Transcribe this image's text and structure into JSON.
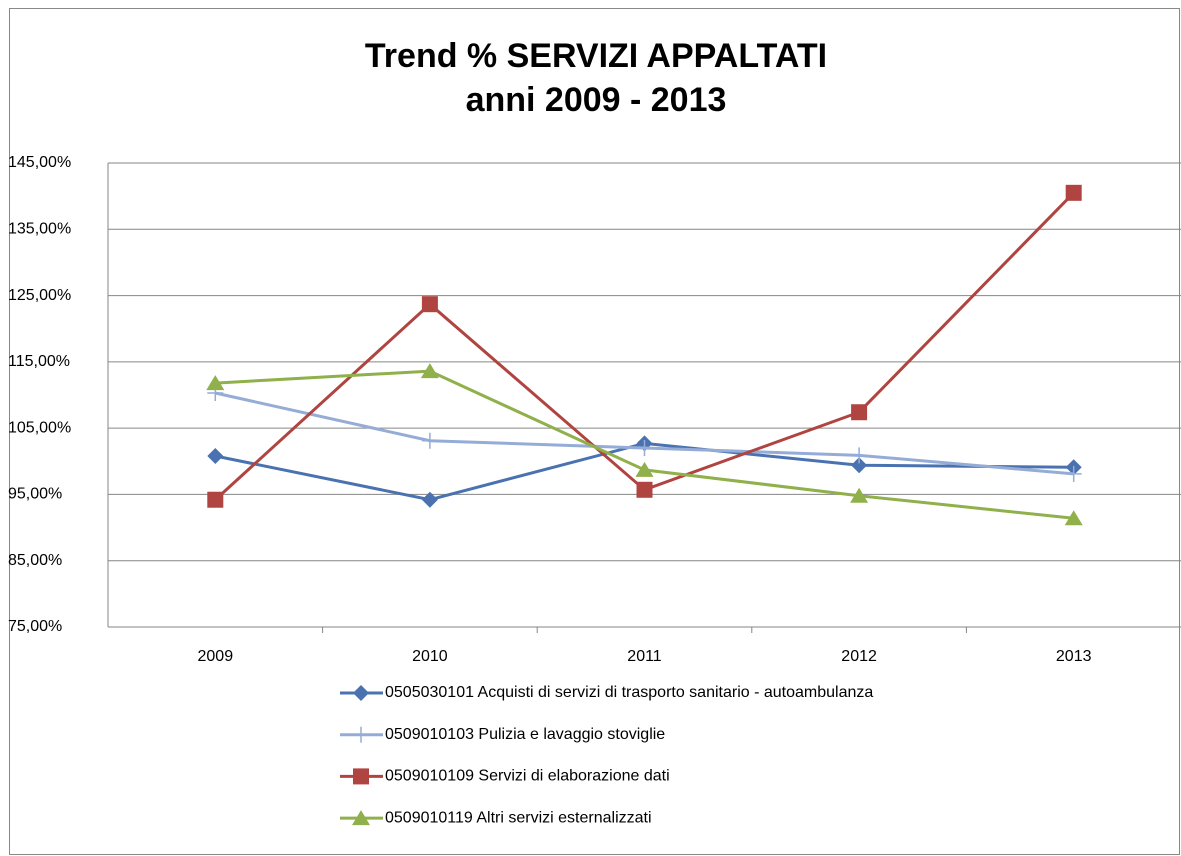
{
  "chart_data": {
    "type": "line",
    "title": "Trend % SERVIZI APPALTATI",
    "subtitle": "anni 2009 - 2013",
    "categories": [
      "2009",
      "2010",
      "2011",
      "2012",
      "2013"
    ],
    "series": [
      {
        "name": "0505030101 Acquisti di servizi di trasporto sanitario - autoambulanza",
        "color": "#4a72b0",
        "marker": "diamond",
        "values": [
          100.8,
          94.2,
          102.7,
          99.4,
          99.1
        ]
      },
      {
        "name": "0509010103 Pulizia e lavaggio stoviglie",
        "color": "#95acd6",
        "marker": "plus",
        "values": [
          110.3,
          103.1,
          102.0,
          100.9,
          98.1
        ]
      },
      {
        "name": "0509010109 Servizi di elaborazione dati",
        "color": "#b04440",
        "marker": "square",
        "values": [
          94.2,
          123.7,
          95.7,
          107.4,
          140.5
        ]
      },
      {
        "name": "0509010119 Altri servizi esternalizzati",
        "color": "#8fb04a",
        "marker": "triangle",
        "values": [
          111.8,
          113.6,
          98.7,
          94.8,
          91.4
        ]
      }
    ],
    "ylim": [
      75,
      145
    ],
    "yticks": [
      {
        "value": 75,
        "label": "75,00%"
      },
      {
        "value": 85,
        "label": "85,00%"
      },
      {
        "value": 95,
        "label": "95,00%"
      },
      {
        "value": 105,
        "label": "105,00%"
      },
      {
        "value": 115,
        "label": "115,00%"
      },
      {
        "value": 125,
        "label": "125,00%"
      },
      {
        "value": 135,
        "label": "135,00%"
      },
      {
        "value": 145,
        "label": "145,00%"
      }
    ],
    "grid": true,
    "legend": "bottom"
  }
}
